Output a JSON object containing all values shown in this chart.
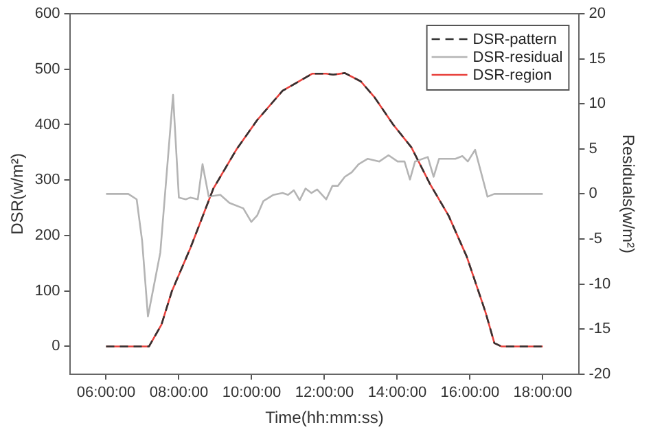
{
  "chart_data": {
    "type": "line",
    "xlabel": "Time(hh:mm:ss)",
    "ylabel": "DSR(w/m²)",
    "y2label": "Residuals(w/m²)",
    "xlim": [
      5,
      19
    ],
    "xticks": [
      {
        "value": 6,
        "label": "06:00:00"
      },
      {
        "value": 8,
        "label": "08:00:00"
      },
      {
        "value": 10,
        "label": "10:00:00"
      },
      {
        "value": 12,
        "label": "12:00:00"
      },
      {
        "value": 14,
        "label": "14:00:00"
      },
      {
        "value": 16,
        "label": "16:00:00"
      },
      {
        "value": 18,
        "label": "18:00:00"
      }
    ],
    "ylim": [
      -50,
      600
    ],
    "yticks": [
      0,
      100,
      200,
      300,
      400,
      500,
      600
    ],
    "y2lim": [
      -20,
      20
    ],
    "y2ticks": [
      -20,
      -15,
      -10,
      -5,
      0,
      5,
      10,
      15,
      20
    ],
    "legend": "top right",
    "grid": false,
    "marker": "none",
    "series": [
      {
        "name": "DSR-pattern",
        "color": "#333333",
        "line_style": "dashed",
        "x": [
          6,
          7.18,
          7.52,
          7.81,
          8.32,
          8.95,
          9.58,
          10.15,
          10.85,
          11.67,
          12.05,
          12.24,
          12.56,
          13.0,
          13.38,
          13.89,
          14.39,
          14.9,
          15.41,
          15.91,
          16.42,
          16.67,
          16.86,
          18
        ],
        "values": [
          0,
          0,
          39,
          100,
          178,
          285,
          355,
          408,
          461,
          492,
          492,
          490,
          493,
          478,
          449,
          400,
          359,
          293,
          236,
          162,
          63,
          6,
          0,
          0
        ]
      },
      {
        "name": "DSR-residual",
        "color": "#b4b4b4",
        "axis": "y2",
        "line_style": "solid",
        "x": [
          6,
          6.61,
          6.84,
          6.99,
          7.15,
          7.49,
          7.84,
          8.0,
          8.19,
          8.32,
          8.52,
          8.65,
          8.82,
          9.14,
          9.39,
          9.77,
          9.99,
          10.15,
          10.32,
          10.6,
          10.85,
          11.0,
          11.16,
          11.32,
          11.48,
          11.64,
          11.8,
          12.05,
          12.22,
          12.37,
          12.56,
          12.75,
          12.94,
          13.19,
          13.51,
          13.76,
          14.01,
          14.2,
          14.35,
          14.49,
          14.84,
          15.0,
          15.15,
          15.6,
          15.79,
          15.94,
          16.14,
          16.48,
          16.67,
          18
        ],
        "values": [
          0,
          0,
          -0.6,
          -5.2,
          -13.6,
          -6.5,
          11.0,
          -0.4,
          -0.6,
          -0.4,
          -0.6,
          3.3,
          -0.3,
          -0.1,
          -1.0,
          -1.6,
          -3.1,
          -2.4,
          -0.8,
          -0.1,
          0.1,
          -0.1,
          0.4,
          -0.7,
          0.6,
          0.1,
          0.5,
          -0.6,
          0.9,
          0.9,
          1.9,
          2.4,
          3.3,
          3.9,
          3.6,
          4.3,
          3.6,
          3.6,
          1.6,
          3.6,
          4.1,
          1.9,
          3.9,
          3.9,
          4.2,
          3.6,
          4.9,
          -0.3,
          0,
          0
        ]
      },
      {
        "name": "DSR-region",
        "color": "#e8413c",
        "line_style": "solid",
        "x": [
          6,
          7.18,
          7.52,
          7.81,
          8.32,
          8.95,
          9.58,
          10.15,
          10.85,
          11.67,
          12.05,
          12.24,
          12.56,
          13.0,
          13.38,
          13.89,
          14.39,
          14.9,
          15.41,
          15.91,
          16.42,
          16.67,
          16.86,
          18
        ],
        "values": [
          0,
          0,
          39,
          100,
          178,
          285,
          355,
          408,
          461,
          492,
          492,
          490,
          493,
          478,
          449,
          400,
          359,
          293,
          236,
          162,
          63,
          6,
          0,
          0
        ]
      }
    ]
  }
}
